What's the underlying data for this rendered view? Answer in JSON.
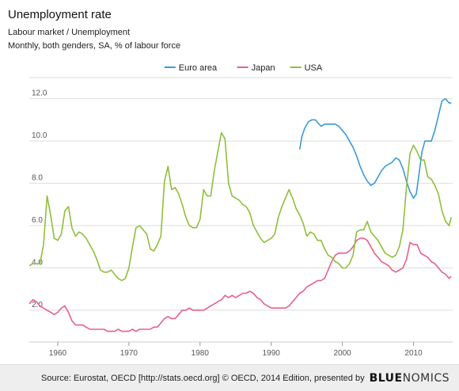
{
  "header": {
    "title": "Unemployment rate",
    "subtitle_line1": "Labour market / Unemployment",
    "subtitle_line2": "Monthly, both genders, SA, % of labour force"
  },
  "footer": {
    "source": "Source: Eurostat, OECD [http://stats.oecd.org] © OECD, 2014 Edition, presented by",
    "brand_bold": "BLUE",
    "brand_rest": "NOMICS"
  },
  "chart_data": {
    "type": "line",
    "xlabel": "",
    "ylabel": "",
    "xlim": [
      1956,
      2015.5
    ],
    "ylim": [
      0.5,
      13
    ],
    "grid": true,
    "legend_position": "top-center",
    "x_ticks": [
      1960,
      1970,
      1980,
      1990,
      2000,
      2010
    ],
    "y_ticks": [
      2.0,
      4.0,
      6.0,
      8.0,
      10.0,
      12.0
    ],
    "series": [
      {
        "name": "Euro area",
        "color": "#3a9ad9",
        "points": [
          [
            1994.0,
            9.6
          ],
          [
            1994.3,
            10.2
          ],
          [
            1994.7,
            10.6
          ],
          [
            1995.2,
            10.9
          ],
          [
            1995.7,
            11.0
          ],
          [
            1996.2,
            11.0
          ],
          [
            1996.7,
            10.8
          ],
          [
            1997.0,
            10.7
          ],
          [
            1997.5,
            10.8
          ],
          [
            1998.0,
            10.8
          ],
          [
            1998.5,
            10.8
          ],
          [
            1999.0,
            10.8
          ],
          [
            1999.5,
            10.7
          ],
          [
            2000.0,
            10.5
          ],
          [
            2000.5,
            10.3
          ],
          [
            2001.0,
            10.0
          ],
          [
            2001.5,
            9.7
          ],
          [
            2002.0,
            9.3
          ],
          [
            2002.5,
            8.8
          ],
          [
            2003.0,
            8.4
          ],
          [
            2003.5,
            8.1
          ],
          [
            2004.0,
            7.9
          ],
          [
            2004.5,
            8.0
          ],
          [
            2005.0,
            8.3
          ],
          [
            2005.5,
            8.6
          ],
          [
            2006.0,
            8.8
          ],
          [
            2006.5,
            8.9
          ],
          [
            2007.0,
            9.0
          ],
          [
            2007.5,
            9.2
          ],
          [
            2008.0,
            9.1
          ],
          [
            2008.5,
            8.7
          ],
          [
            2009.0,
            8.1
          ],
          [
            2009.5,
            7.6
          ],
          [
            2010.0,
            7.3
          ],
          [
            2010.4,
            7.5
          ],
          [
            2010.8,
            8.5
          ],
          [
            2011.2,
            9.5
          ],
          [
            2011.6,
            10.0
          ],
          [
            2012.0,
            10.0
          ],
          [
            2012.5,
            10.0
          ],
          [
            2013.0,
            10.5
          ],
          [
            2013.5,
            11.2
          ],
          [
            2014.0,
            11.9
          ],
          [
            2014.5,
            12.0
          ],
          [
            2015.0,
            11.8
          ],
          [
            2015.3,
            11.8
          ]
        ]
      },
      {
        "name": "Japan",
        "color": "#e8608a",
        "points": [
          [
            1956.0,
            2.3
          ],
          [
            1956.5,
            2.5
          ],
          [
            1957.0,
            2.4
          ],
          [
            1957.5,
            2.2
          ],
          [
            1958.0,
            2.1
          ],
          [
            1958.5,
            2.0
          ],
          [
            1959.0,
            1.9
          ],
          [
            1959.5,
            1.8
          ],
          [
            1960.0,
            1.9
          ],
          [
            1960.5,
            2.1
          ],
          [
            1961.0,
            2.2
          ],
          [
            1961.5,
            1.9
          ],
          [
            1962.0,
            1.5
          ],
          [
            1962.5,
            1.3
          ],
          [
            1963.0,
            1.3
          ],
          [
            1963.5,
            1.3
          ],
          [
            1964.0,
            1.2
          ],
          [
            1964.5,
            1.1
          ],
          [
            1965.0,
            1.1
          ],
          [
            1965.5,
            1.1
          ],
          [
            1966.0,
            1.1
          ],
          [
            1966.5,
            1.1
          ],
          [
            1967.0,
            1.0
          ],
          [
            1967.5,
            1.0
          ],
          [
            1968.0,
            1.0
          ],
          [
            1968.5,
            1.1
          ],
          [
            1969.0,
            1.0
          ],
          [
            1969.5,
            1.0
          ],
          [
            1970.0,
            1.0
          ],
          [
            1970.5,
            1.1
          ],
          [
            1971.0,
            1.0
          ],
          [
            1971.5,
            1.1
          ],
          [
            1972.0,
            1.1
          ],
          [
            1972.5,
            1.1
          ],
          [
            1973.0,
            1.1
          ],
          [
            1973.5,
            1.2
          ],
          [
            1974.0,
            1.2
          ],
          [
            1974.5,
            1.4
          ],
          [
            1975.0,
            1.6
          ],
          [
            1975.5,
            1.7
          ],
          [
            1976.0,
            1.6
          ],
          [
            1976.5,
            1.6
          ],
          [
            1977.0,
            1.8
          ],
          [
            1977.5,
            2.0
          ],
          [
            1978.0,
            2.0
          ],
          [
            1978.5,
            2.1
          ],
          [
            1979.0,
            2.0
          ],
          [
            1979.5,
            2.0
          ],
          [
            1980.0,
            2.0
          ],
          [
            1980.5,
            2.0
          ],
          [
            1981.0,
            2.1
          ],
          [
            1981.5,
            2.2
          ],
          [
            1982.0,
            2.3
          ],
          [
            1982.5,
            2.4
          ],
          [
            1983.0,
            2.5
          ],
          [
            1983.5,
            2.7
          ],
          [
            1984.0,
            2.6
          ],
          [
            1984.5,
            2.7
          ],
          [
            1985.0,
            2.6
          ],
          [
            1985.5,
            2.7
          ],
          [
            1986.0,
            2.8
          ],
          [
            1986.5,
            2.8
          ],
          [
            1987.0,
            2.9
          ],
          [
            1987.5,
            2.8
          ],
          [
            1988.0,
            2.6
          ],
          [
            1988.5,
            2.5
          ],
          [
            1989.0,
            2.3
          ],
          [
            1989.5,
            2.2
          ],
          [
            1990.0,
            2.1
          ],
          [
            1990.5,
            2.1
          ],
          [
            1991.0,
            2.1
          ],
          [
            1991.5,
            2.1
          ],
          [
            1992.0,
            2.1
          ],
          [
            1992.5,
            2.2
          ],
          [
            1993.0,
            2.4
          ],
          [
            1993.5,
            2.6
          ],
          [
            1994.0,
            2.8
          ],
          [
            1994.5,
            2.9
          ],
          [
            1995.0,
            3.1
          ],
          [
            1995.5,
            3.2
          ],
          [
            1996.0,
            3.3
          ],
          [
            1996.5,
            3.4
          ],
          [
            1997.0,
            3.4
          ],
          [
            1997.5,
            3.5
          ],
          [
            1998.0,
            3.9
          ],
          [
            1998.5,
            4.3
          ],
          [
            1999.0,
            4.6
          ],
          [
            1999.5,
            4.7
          ],
          [
            2000.0,
            4.7
          ],
          [
            2000.5,
            4.7
          ],
          [
            2001.0,
            4.8
          ],
          [
            2001.5,
            5.0
          ],
          [
            2002.0,
            5.3
          ],
          [
            2002.5,
            5.4
          ],
          [
            2003.0,
            5.4
          ],
          [
            2003.5,
            5.3
          ],
          [
            2004.0,
            5.0
          ],
          [
            2004.5,
            4.7
          ],
          [
            2005.0,
            4.5
          ],
          [
            2005.5,
            4.3
          ],
          [
            2006.0,
            4.2
          ],
          [
            2006.5,
            4.1
          ],
          [
            2007.0,
            3.9
          ],
          [
            2007.5,
            3.8
          ],
          [
            2008.0,
            3.9
          ],
          [
            2008.5,
            4.0
          ],
          [
            2009.0,
            4.4
          ],
          [
            2009.5,
            5.2
          ],
          [
            2010.0,
            5.1
          ],
          [
            2010.5,
            5.1
          ],
          [
            2011.0,
            4.7
          ],
          [
            2011.5,
            4.6
          ],
          [
            2012.0,
            4.5
          ],
          [
            2012.5,
            4.3
          ],
          [
            2013.0,
            4.2
          ],
          [
            2013.5,
            4.0
          ],
          [
            2014.0,
            3.8
          ],
          [
            2014.5,
            3.7
          ],
          [
            2015.0,
            3.5
          ],
          [
            2015.3,
            3.6
          ]
        ]
      },
      {
        "name": "USA",
        "color": "#8fbf3a",
        "points": [
          [
            1956.0,
            4.1
          ],
          [
            1956.5,
            4.2
          ],
          [
            1957.0,
            4.2
          ],
          [
            1957.5,
            4.2
          ],
          [
            1958.0,
            5.1
          ],
          [
            1958.5,
            7.4
          ],
          [
            1959.0,
            6.5
          ],
          [
            1959.5,
            5.4
          ],
          [
            1960.0,
            5.3
          ],
          [
            1960.5,
            5.6
          ],
          [
            1961.0,
            6.7
          ],
          [
            1961.5,
            6.9
          ],
          [
            1962.0,
            5.9
          ],
          [
            1962.5,
            5.5
          ],
          [
            1963.0,
            5.7
          ],
          [
            1963.5,
            5.6
          ],
          [
            1964.0,
            5.4
          ],
          [
            1964.5,
            5.1
          ],
          [
            1965.0,
            4.8
          ],
          [
            1965.5,
            4.4
          ],
          [
            1966.0,
            3.9
          ],
          [
            1966.5,
            3.8
          ],
          [
            1967.0,
            3.8
          ],
          [
            1967.5,
            3.9
          ],
          [
            1968.0,
            3.7
          ],
          [
            1968.5,
            3.5
          ],
          [
            1969.0,
            3.4
          ],
          [
            1969.5,
            3.5
          ],
          [
            1970.0,
            4.0
          ],
          [
            1970.5,
            5.0
          ],
          [
            1971.0,
            5.9
          ],
          [
            1971.5,
            6.0
          ],
          [
            1972.0,
            5.8
          ],
          [
            1972.5,
            5.6
          ],
          [
            1973.0,
            4.9
          ],
          [
            1973.5,
            4.8
          ],
          [
            1974.0,
            5.1
          ],
          [
            1974.5,
            5.5
          ],
          [
            1975.0,
            8.1
          ],
          [
            1975.5,
            8.8
          ],
          [
            1976.0,
            7.7
          ],
          [
            1976.5,
            7.8
          ],
          [
            1977.0,
            7.5
          ],
          [
            1977.5,
            7.0
          ],
          [
            1978.0,
            6.4
          ],
          [
            1978.5,
            6.0
          ],
          [
            1979.0,
            5.9
          ],
          [
            1979.5,
            5.9
          ],
          [
            1980.0,
            6.3
          ],
          [
            1980.5,
            7.7
          ],
          [
            1981.0,
            7.4
          ],
          [
            1981.5,
            7.4
          ],
          [
            1982.0,
            8.6
          ],
          [
            1982.5,
            9.5
          ],
          [
            1983.0,
            10.4
          ],
          [
            1983.5,
            10.1
          ],
          [
            1984.0,
            8.0
          ],
          [
            1984.5,
            7.4
          ],
          [
            1985.0,
            7.3
          ],
          [
            1985.5,
            7.2
          ],
          [
            1986.0,
            7.0
          ],
          [
            1986.5,
            6.9
          ],
          [
            1987.0,
            6.6
          ],
          [
            1987.5,
            6.0
          ],
          [
            1988.0,
            5.7
          ],
          [
            1988.5,
            5.4
          ],
          [
            1989.0,
            5.2
          ],
          [
            1989.5,
            5.3
          ],
          [
            1990.0,
            5.4
          ],
          [
            1990.5,
            5.6
          ],
          [
            1991.0,
            6.4
          ],
          [
            1991.5,
            6.9
          ],
          [
            1992.0,
            7.3
          ],
          [
            1992.5,
            7.7
          ],
          [
            1993.0,
            7.3
          ],
          [
            1993.5,
            6.8
          ],
          [
            1994.0,
            6.5
          ],
          [
            1994.5,
            6.1
          ],
          [
            1995.0,
            5.5
          ],
          [
            1995.5,
            5.7
          ],
          [
            1996.0,
            5.6
          ],
          [
            1996.5,
            5.3
          ],
          [
            1997.0,
            5.3
          ],
          [
            1997.5,
            4.9
          ],
          [
            1998.0,
            4.6
          ],
          [
            1998.5,
            4.5
          ],
          [
            1999.0,
            4.3
          ],
          [
            1999.5,
            4.2
          ],
          [
            2000.0,
            4.0
          ],
          [
            2000.5,
            4.0
          ],
          [
            2001.0,
            4.2
          ],
          [
            2001.5,
            4.6
          ],
          [
            2002.0,
            5.7
          ],
          [
            2002.5,
            5.8
          ],
          [
            2003.0,
            5.8
          ],
          [
            2003.5,
            6.2
          ],
          [
            2004.0,
            5.7
          ],
          [
            2004.5,
            5.5
          ],
          [
            2005.0,
            5.3
          ],
          [
            2005.5,
            5.0
          ],
          [
            2006.0,
            4.7
          ],
          [
            2006.5,
            4.6
          ],
          [
            2007.0,
            4.5
          ],
          [
            2007.5,
            4.6
          ],
          [
            2008.0,
            5.0
          ],
          [
            2008.5,
            5.8
          ],
          [
            2009.0,
            7.8
          ],
          [
            2009.5,
            9.4
          ],
          [
            2010.0,
            9.8
          ],
          [
            2010.5,
            9.5
          ],
          [
            2011.0,
            9.1
          ],
          [
            2011.5,
            9.1
          ],
          [
            2012.0,
            8.3
          ],
          [
            2012.5,
            8.2
          ],
          [
            2013.0,
            7.9
          ],
          [
            2013.5,
            7.5
          ],
          [
            2014.0,
            6.7
          ],
          [
            2014.5,
            6.2
          ],
          [
            2015.0,
            6.0
          ],
          [
            2015.3,
            6.4
          ]
        ]
      }
    ]
  }
}
